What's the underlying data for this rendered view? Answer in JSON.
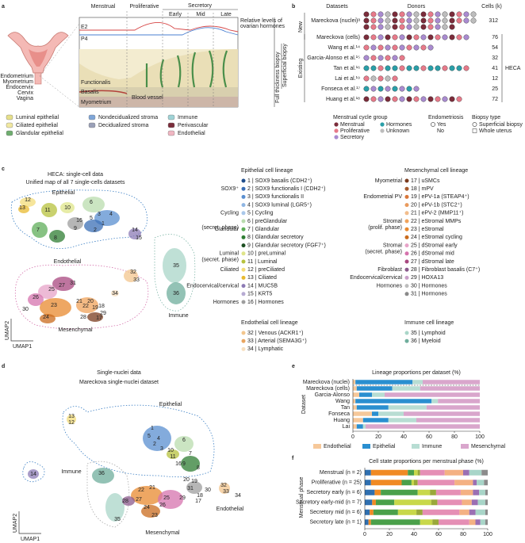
{
  "panel_labels": [
    "a",
    "b",
    "c",
    "d",
    "e",
    "f"
  ],
  "panel_a": {
    "phases": [
      "Menstrual",
      "Proliferative",
      "Secretory"
    ],
    "subphases": [
      "Early",
      "Mid",
      "Late"
    ],
    "hormones": [
      "E2",
      "P4"
    ],
    "hormone_axis": [
      "Relative levels of",
      "ovarian hormones"
    ],
    "biopsy": [
      "Full thickness biopsy",
      "Superficial biopsy"
    ],
    "layers": [
      "Functionalis",
      "Basalis",
      "Myometrium"
    ],
    "vessel": "Blood vessel",
    "anatomy": [
      "Endometrium",
      "Myometrium",
      "Endocervix",
      "Cervix",
      "Vagina"
    ],
    "legend": [
      "Luminal epithelial",
      "Ciliated epithelial",
      "Glandular epithelial",
      "Nondecidualized stroma",
      "Decidualized stroma",
      "Immune",
      "Perivascular",
      "Endothelial"
    ]
  },
  "panel_b": {
    "headers": [
      "Datasets",
      "Donors",
      "Cells (k)"
    ],
    "groups": [
      "New",
      "Existing"
    ],
    "atlas": "HECA",
    "datasets": [
      "Mareckova (nuclei)ᵃ",
      "Mareckova (cells)",
      "Wang et al.¹⁴",
      "Garcia-Alonso et al.¹⁵",
      "Tan et al.¹⁶",
      "Lai et al.¹⁹",
      "Fonseca et al.¹⁷",
      "Huang et al.¹⁸"
    ],
    "donors": [
      45,
      15,
      10,
      6,
      15,
      5,
      8,
      14
    ],
    "cells": [
      312,
      76,
      54,
      32,
      41,
      12,
      25,
      72
    ],
    "legend": {
      "cycle_title": "Menstrual cycle group",
      "cycle": [
        {
          "name": "Menstrual",
          "color": "#7b2d3b"
        },
        {
          "name": "Proliferative",
          "color": "#e77a8a"
        },
        {
          "name": "Secretory",
          "color": "#a98bd0"
        },
        {
          "name": "Hormones",
          "color": "#2a9fa8"
        },
        {
          "name": "Unknown",
          "color": "#bdbdbd"
        }
      ],
      "endometriosis_title": "Endometriosis",
      "endometriosis": [
        "Yes",
        "No"
      ],
      "biopsy_title": "Biopsy type",
      "biopsy": [
        "Superficial biopsy",
        "Whole uterus"
      ]
    }
  },
  "panel_c": {
    "title": "HECA: single-cell data",
    "subtitle": "Unified map of all 7 single-cells datasets",
    "lineages": [
      "Epithelial",
      "Endothelial",
      "Mesenchymal",
      "Immune"
    ],
    "axes": [
      "UMAP1",
      "UMAP2"
    ],
    "cluster_labels": [
      "12",
      "13",
      "11",
      "10",
      "6",
      "3",
      "4",
      "5",
      "1",
      "2",
      "16",
      "9",
      "7",
      "8",
      "14",
      "15",
      "32",
      "33",
      "34",
      "27",
      "31",
      "25",
      "26",
      "30",
      "23",
      "21",
      "22",
      "20",
      "19",
      "18",
      "29",
      "24",
      "17",
      "28",
      "35",
      "36"
    ],
    "epithelial": {
      "title": "Epithelial cell lineage",
      "groups": [
        {
          "label": [
            "SOX9⁺"
          ],
          "items": [
            {
              "text": "1 | SOX9 basalis (CDH2⁺)",
              "color": "#1f4e8c"
            },
            {
              "text": "2 | SOX9 functionalis I (CDH2⁺)",
              "color": "#3b6fb6"
            },
            {
              "text": "3 | SOX9 functionalis II",
              "color": "#5a8fd0"
            },
            {
              "text": "4 | SOX9 luminal (LGR5⁺)",
              "color": "#8fb6e3"
            }
          ]
        },
        {
          "label": [
            "Cycling"
          ],
          "items": [
            {
              "text": "5 | Cycling",
              "color": "#aac8ea"
            }
          ]
        },
        {
          "label": [
            "Glandular",
            "(secret. phase)"
          ],
          "items": [
            {
              "text": "6 | preGlandular",
              "color": "#b9dcae"
            },
            {
              "text": "7 | Glandular",
              "color": "#5fae5a"
            },
            {
              "text": "8 | Glandular secretory",
              "color": "#2f7d33"
            },
            {
              "text": "9 | Glandular secretory (FGF7⁺)",
              "color": "#1c4f22"
            }
          ]
        },
        {
          "label": [
            "Luminal",
            "(secret. phase)"
          ],
          "items": [
            {
              "text": "10 | preLuminal",
              "color": "#dfe58a"
            },
            {
              "text": "11 | Luminal",
              "color": "#b7c23e"
            }
          ]
        },
        {
          "label": [
            "Ciliated"
          ],
          "items": [
            {
              "text": "12 | preCiliated",
              "color": "#f3dc7a"
            },
            {
              "text": "13 | Ciliated",
              "color": "#e8b92f"
            }
          ]
        },
        {
          "label": [
            "Endocervical/cervical"
          ],
          "items": [
            {
              "text": "14 | MUC5B",
              "color": "#8c7bb5"
            },
            {
              "text": "15 | KRT5",
              "color": "#b7abd3"
            }
          ]
        },
        {
          "label": [
            "Hormones"
          ],
          "items": [
            {
              "text": "16 | Hormones",
              "color": "#9e9e9e"
            }
          ]
        }
      ]
    },
    "mesenchymal": {
      "title": "Mesenchymal cell lineage",
      "groups": [
        {
          "label": [
            "Myometrial"
          ],
          "items": [
            {
              "text": "17 | uSMCs",
              "color": "#7a3b1e"
            },
            {
              "text": "18 | mPV",
              "color": "#a65a2e"
            }
          ]
        },
        {
          "label": [
            "Endometrial PV"
          ],
          "items": [
            {
              "text": "19 | ePV-1a (STEAP4⁺)",
              "color": "#d9773a"
            },
            {
              "text": "20 | ePV-1b (STC2⁺)",
              "color": "#e99a5d"
            },
            {
              "text": "21 | ePV-2 (MMP11⁺)",
              "color": "#f2bd8c"
            }
          ]
        },
        {
          "label": [
            "Stromal",
            "(prolif. phase)"
          ],
          "items": [
            {
              "text": "22 | eStromal MMPs",
              "color": "#f0a35b"
            },
            {
              "text": "23 | eStromal",
              "color": "#e8892f"
            },
            {
              "text": "24 | eStromal cycling",
              "color": "#c96b1d"
            }
          ]
        },
        {
          "label": [
            "Stromal",
            "(secret. phase)"
          ],
          "items": [
            {
              "text": "25 | dStromal early",
              "color": "#e7a3c8"
            },
            {
              "text": "26 | dStromal mid",
              "color": "#d673ad"
            },
            {
              "text": "27 | dStromal late",
              "color": "#a8477f"
            }
          ]
        },
        {
          "label": [
            "Fibroblast"
          ],
          "items": [
            {
              "text": "28 | Fibroblast basalis (C7⁺)",
              "color": "#8b5a8c"
            }
          ]
        },
        {
          "label": [
            "Endocervical/cervical"
          ],
          "items": [
            {
              "text": "29 | HOXA13",
              "color": "#c9a0c9"
            }
          ]
        },
        {
          "label": [
            "Hormones"
          ],
          "items": [
            {
              "text": "30 | Hormones",
              "color": "#bdbdbd"
            },
            {
              "text": "31 | Hormones",
              "color": "#8a8a8a"
            }
          ]
        }
      ]
    },
    "endothelial": {
      "title": "Endothelial cell lineage",
      "items": [
        {
          "text": "32 | Venous (ACKR1⁺)",
          "color": "#f3c68e"
        },
        {
          "text": "33 | Arterial (SEMA3G⁺)",
          "color": "#e9a560"
        },
        {
          "text": "34 | Lymphatic",
          "color": "#f7dfbf"
        }
      ]
    },
    "immune": {
      "title": "Immune cell lineage",
      "items": [
        {
          "text": "35 | Lymphoid",
          "color": "#a9d6c8"
        },
        {
          "text": "36 | Myeloid",
          "color": "#6fae9c"
        }
      ]
    }
  },
  "panel_d": {
    "title": "Single-nuclei data",
    "subtitle": "Mareckova single-nuclei dataset",
    "lineages": [
      "Epithelial",
      "Immune",
      "Endothelial",
      "Mesenchymal"
    ],
    "axes": [
      "UMAP1",
      "UMAP2"
    ],
    "cluster_labels": [
      "13",
      "12",
      "14",
      "1",
      "5",
      "4",
      "2",
      "3",
      "6",
      "10",
      "11",
      "7",
      "9",
      "8",
      "16",
      "36",
      "20",
      "19",
      "32",
      "33",
      "22",
      "21",
      "31",
      "25",
      "28",
      "27",
      "26",
      "29",
      "24",
      "23",
      "30",
      "18",
      "17",
      "34",
      "35"
    ]
  },
  "panel_e": {
    "type": "bar",
    "title": "Lineage proportions per dataset (%)",
    "ylabel": "Dataset",
    "categories": [
      "Mareckova (nuclei)",
      "Mareckova (cells)",
      "Garcia-Alonso",
      "Wang",
      "Tan",
      "Fonseca",
      "Huang",
      "Lai"
    ],
    "series": [
      {
        "name": "Endothelial",
        "color": "#f6c89a",
        "values": [
          2,
          3,
          5,
          2,
          3,
          15,
          8,
          3
        ]
      },
      {
        "name": "Epithelial",
        "color": "#2a8fd0",
        "values": [
          45,
          28,
          10,
          60,
          25,
          5,
          20,
          5
        ]
      },
      {
        "name": "Immune",
        "color": "#b8ddd3",
        "values": [
          8,
          22,
          10,
          5,
          30,
          20,
          22,
          2
        ]
      },
      {
        "name": "Mesenchymal",
        "color": "#d9a6cc",
        "values": [
          45,
          47,
          75,
          33,
          42,
          60,
          50,
          90
        ]
      }
    ],
    "xlim": [
      0,
      100
    ],
    "xticks": [
      0,
      20,
      40,
      60,
      80,
      100
    ]
  },
  "panel_f": {
    "type": "bar",
    "title": "Cell state proportions per menstrual phase (%)",
    "ylabel": "Menstrual phase",
    "categories": [
      "Menstrual (n = 2)",
      "Proliferative (n = 25)",
      "Secretory early (n = 6)",
      "Secretory early-mid (n = 7)",
      "Secretory mid (n = 6)",
      "Secretory late (n = 1)"
    ],
    "series": [
      {
        "color": "#2f6fb0",
        "values": [
          5,
          5,
          8,
          6,
          4,
          3
        ]
      },
      {
        "color": "#f08a24",
        "values": [
          30,
          25,
          5,
          3,
          3,
          2
        ]
      },
      {
        "color": "#4aa04a",
        "values": [
          5,
          8,
          30,
          15,
          20,
          40
        ]
      },
      {
        "color": "#c8d84a",
        "values": [
          3,
          2,
          10,
          30,
          15,
          10
        ]
      },
      {
        "color": "#9aa83a",
        "values": [
          2,
          3,
          5,
          5,
          5,
          5
        ]
      },
      {
        "color": "#e58fb5",
        "values": [
          20,
          30,
          20,
          20,
          30,
          25
        ]
      },
      {
        "color": "#f4b183",
        "values": [
          15,
          15,
          10,
          8,
          8,
          5
        ]
      },
      {
        "color": "#9b6fb3",
        "values": [
          5,
          3,
          5,
          5,
          5,
          4
        ]
      },
      {
        "color": "#a8d5c8",
        "values": [
          10,
          6,
          5,
          6,
          8,
          4
        ]
      },
      {
        "color": "#8c8c8c",
        "values": [
          5,
          3,
          2,
          2,
          2,
          2
        ]
      }
    ],
    "xlim": [
      0,
      100
    ],
    "xticks": [
      0,
      20,
      40,
      60,
      80,
      100
    ]
  }
}
